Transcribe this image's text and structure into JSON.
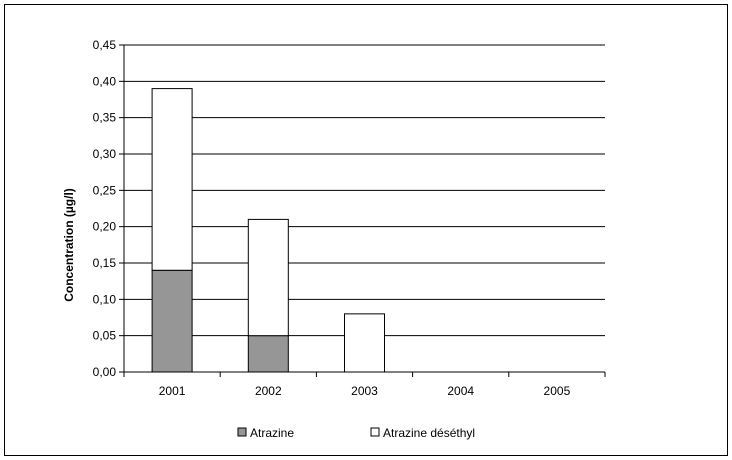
{
  "chart_data": {
    "type": "bar",
    "stacked": true,
    "categories": [
      "2001",
      "2002",
      "2003",
      "2004",
      "2005"
    ],
    "series": [
      {
        "name": "Atrazine",
        "values": [
          0.14,
          0.05,
          0.0,
          0.0,
          0.0
        ],
        "color": "#969696"
      },
      {
        "name": "Atrazine déséthyl",
        "values": [
          0.25,
          0.16,
          0.08,
          0.0,
          0.0
        ],
        "color": "#ffffff"
      }
    ],
    "title": "",
    "xlabel": "",
    "ylabel": "Concentration (µg/l)",
    "ylim": [
      0,
      0.45
    ],
    "yticks": [
      "0,00",
      "0,05",
      "0,10",
      "0,15",
      "0,20",
      "0,25",
      "0,30",
      "0,35",
      "0,40",
      "0,45"
    ],
    "grid": true,
    "legend_position": "bottom"
  }
}
